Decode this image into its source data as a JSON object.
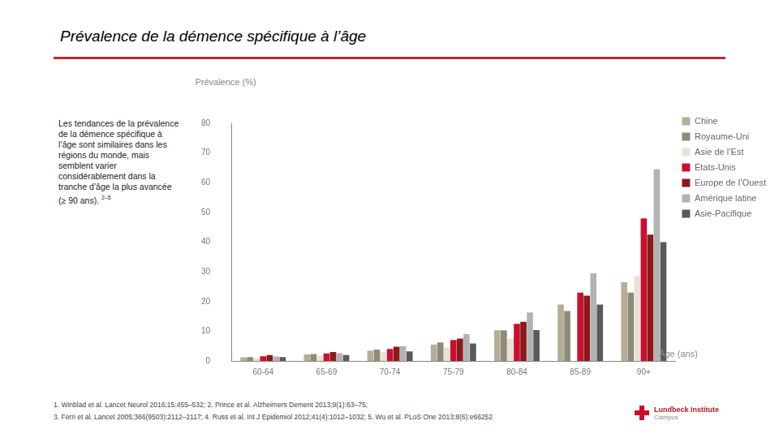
{
  "title": "Prévalence de la démence spécifique à l’âge",
  "text": {
    "body": "Les tendances de la prévalence de la démence spécifique à l’âge sont similaires dans les régions du monde, mais semblent varier considérablement dans la tranche d’âge la plus avancée (≥ 90 ans).",
    "refs": "2–5"
  },
  "references": [
    "1. Winblad et al. Lancet Neurol 2016;15:455–532; 2. Prince et al. Alzheimers Dement 2013;9(1):63–75;",
    "3. Ferri et al. Lancet 2005;366(9503):2112–2117; 4. Russ et al. Int J Epidemiol 2012;41(4):1012–1032; 5. Wu et al. PLoS One 2013;8(6):e66252"
  ],
  "logo": [
    "Lundbeck Institute",
    "Campus"
  ],
  "chart_data": {
    "type": "bar",
    "y_label": "Prévalence (%)",
    "x_label": "Âge (ans)",
    "categories": [
      "60-64",
      "65-69",
      "70-74",
      "75-79",
      "80-84",
      "85-89",
      "90+"
    ],
    "series": [
      {
        "name": "Chine",
        "color": "#b5ad95",
        "values": [
          1.2,
          2.2,
          3.5,
          5.5,
          10.3,
          19,
          26.5
        ]
      },
      {
        "name": "Royaume-Uni",
        "color": "#8c8a78",
        "values": [
          1.3,
          2.3,
          3.8,
          6.2,
          10.3,
          16.8,
          23
        ]
      },
      {
        "name": "Asie de l’Est",
        "color": "#e6e2d6",
        "values": [
          0.8,
          1.8,
          3.0,
          4.5,
          7.5,
          null,
          28.5
        ]
      },
      {
        "name": "États-Unis",
        "color": "#c8102e",
        "values": [
          1.6,
          2.5,
          4.0,
          7.0,
          12.5,
          23,
          48
        ]
      },
      {
        "name": "Europe de l’Ouest",
        "color": "#8b1a1a",
        "values": [
          2.0,
          3.0,
          4.8,
          7.5,
          13.2,
          22,
          42.5
        ]
      },
      {
        "name": "Amérique latine",
        "color": "#b3b3b3",
        "values": [
          1.5,
          2.6,
          5.0,
          9.0,
          16.3,
          29.5,
          64.5
        ]
      },
      {
        "name": "Asie-Pacifique",
        "color": "#5a5a5a",
        "values": [
          1.3,
          2.0,
          3.2,
          5.9,
          10.4,
          19,
          40
        ]
      }
    ],
    "ylim": [
      0,
      80
    ],
    "yticks": [
      0,
      10,
      20,
      30,
      40,
      50,
      60,
      70,
      80
    ],
    "grid": false,
    "legend": "right"
  }
}
